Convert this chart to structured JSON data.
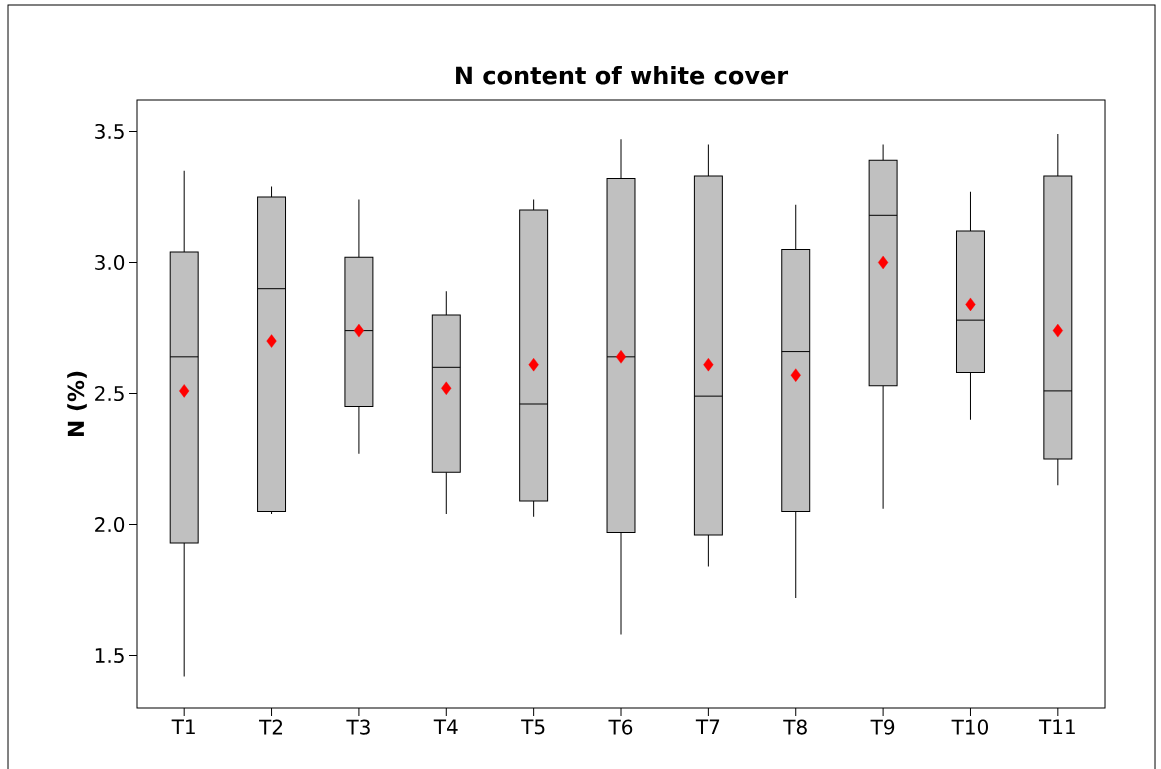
{
  "chart_data": {
    "type": "box",
    "title": "N content of white cover",
    "ylabel": "N (%)",
    "categories": [
      "T1",
      "T2",
      "T3",
      "T4",
      "T5",
      "T6",
      "T7",
      "T8",
      "T9",
      "T10",
      "T11"
    ],
    "ylim": [
      1.3,
      3.62
    ],
    "yticks": [
      {
        "value": 1.5,
        "label": "1.5"
      },
      {
        "value": 2.0,
        "label": "2.0"
      },
      {
        "value": 2.5,
        "label": "2.5"
      },
      {
        "value": 3.0,
        "label": "3.0"
      },
      {
        "value": 3.5,
        "label": "3.5"
      }
    ],
    "marker": "diamond",
    "series": [
      {
        "color": "#c0c0c0",
        "boxes": [
          {
            "low": 1.42,
            "q1": 1.93,
            "median": 2.64,
            "q3": 3.04,
            "high": 3.35,
            "mean": 2.51
          },
          {
            "low": 2.04,
            "q1": 2.05,
            "median": 2.9,
            "q3": 3.25,
            "high": 3.29,
            "mean": 2.7
          },
          {
            "low": 2.27,
            "q1": 2.45,
            "median": 2.74,
            "q3": 3.02,
            "high": 3.24,
            "mean": 2.74
          },
          {
            "low": 2.04,
            "q1": 2.2,
            "median": 2.6,
            "q3": 2.8,
            "high": 2.89,
            "mean": 2.52
          },
          {
            "low": 2.03,
            "q1": 2.09,
            "median": 2.46,
            "q3": 3.2,
            "high": 3.24,
            "mean": 2.61
          },
          {
            "low": 1.58,
            "q1": 1.97,
            "median": 2.64,
            "q3": 3.32,
            "high": 3.47,
            "mean": 2.64
          },
          {
            "low": 1.84,
            "q1": 1.96,
            "median": 2.49,
            "q3": 3.33,
            "high": 3.45,
            "mean": 2.61
          },
          {
            "low": 1.72,
            "q1": 2.05,
            "median": 2.66,
            "q3": 3.05,
            "high": 3.22,
            "mean": 2.57
          },
          {
            "low": 2.06,
            "q1": 2.53,
            "median": 3.18,
            "q3": 3.39,
            "high": 3.45,
            "mean": 3.0
          },
          {
            "low": 2.4,
            "q1": 2.58,
            "median": 2.78,
            "q3": 3.12,
            "high": 3.27,
            "mean": 2.84
          },
          {
            "low": 2.15,
            "q1": 2.25,
            "median": 2.51,
            "q3": 3.33,
            "high": 3.49,
            "mean": 2.74
          }
        ]
      }
    ]
  }
}
